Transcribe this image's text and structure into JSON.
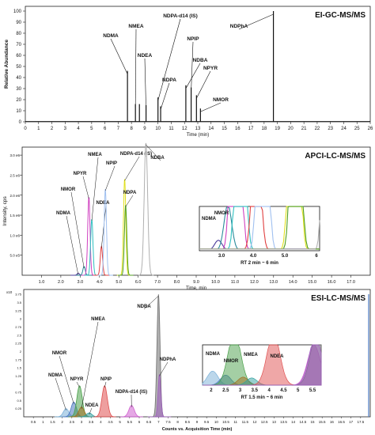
{
  "chart_data": [
    {
      "type": "line",
      "title": "EI-GC-MS/MS",
      "xlabel": "Time (min)",
      "ylabel": "Relative Abundance",
      "xlim": [
        0,
        26
      ],
      "ylim": [
        0,
        100
      ],
      "xticks": [
        0,
        1,
        2,
        3,
        4,
        5,
        6,
        7,
        8,
        9,
        10,
        11,
        12,
        13,
        14,
        15,
        16,
        17,
        18,
        19,
        20,
        21,
        22,
        23,
        24,
        25,
        26
      ],
      "yticks": [
        0,
        10,
        20,
        30,
        40,
        50,
        60,
        70,
        80,
        90,
        100
      ],
      "grid": false,
      "color": "#111111",
      "peaks": [
        {
          "name": "NDMA",
          "x": 7.7,
          "y": 46,
          "label": "NDMA"
        },
        {
          "name": "NMEA",
          "x": 8.3,
          "y": 16,
          "label": "NMEA"
        },
        {
          "name": "NMEA-2",
          "x": 8.6,
          "y": 16,
          "label": ""
        },
        {
          "name": "NDEA",
          "x": 9.1,
          "y": 15,
          "label": "NDEA"
        },
        {
          "name": "NDPA-d14 (IS)",
          "x": 10.0,
          "y": 22,
          "label": "NDPA-d14 (IS)"
        },
        {
          "name": "NDPA",
          "x": 10.2,
          "y": 14,
          "label": "NDPA"
        },
        {
          "name": "NDBA",
          "x": 12.1,
          "y": 33,
          "label": "NDBA"
        },
        {
          "name": "NPIP",
          "x": 12.5,
          "y": 31,
          "label": "NPIP"
        },
        {
          "name": "NPYR",
          "x": 12.9,
          "y": 24,
          "label": "NPYR"
        },
        {
          "name": "NMOR",
          "x": 13.2,
          "y": 12,
          "label": "NMOR"
        },
        {
          "name": "NDPhA",
          "x": 18.7,
          "y": 100,
          "label": "NDPhA"
        }
      ]
    },
    {
      "type": "line",
      "title": "APCI-LC-MS/MS",
      "xlabel": "Time, min",
      "ylabel": "Intensity, cps",
      "xlim": [
        0,
        18
      ],
      "ylim": [
        0,
        3.2
      ],
      "xticks": [
        1.0,
        2.0,
        3.0,
        4.0,
        5.0,
        6.0,
        7.0,
        8.0,
        9.0,
        10.0,
        11.0,
        12.0,
        13.0,
        14.0,
        15.0,
        16.0,
        17.0
      ],
      "yticks": [
        "5.0 e5",
        "1.0 e6",
        "1.5 e6",
        "2.0 e6",
        "2.5 e6",
        "3.0 e6"
      ],
      "grid": false,
      "series": [
        {
          "name": "NDMA",
          "x": 2.9,
          "y": 0.05,
          "color": "#4a3a9a",
          "label": "NDMA"
        },
        {
          "name": "NMOR",
          "x": 3.2,
          "y": 0.22,
          "color": "#2a8a9a",
          "label": "NMOR"
        },
        {
          "name": "NPYR",
          "x": 3.45,
          "y": 1.95,
          "color": "#d040c0",
          "label": "NPYR"
        },
        {
          "name": "NMEA",
          "x": 3.6,
          "y": 1.4,
          "color": "#30c0c0",
          "label": "NMEA"
        },
        {
          "name": "NDEA",
          "x": 4.1,
          "y": 0.72,
          "color": "#e04040",
          "label": "NDEA"
        },
        {
          "name": "NPIP",
          "x": 4.3,
          "y": 2.15,
          "color": "#a0c0f0",
          "label": "NPIP"
        },
        {
          "name": "NDPA-d14 (IS)",
          "x": 5.3,
          "y": 2.4,
          "color": "#e0e020",
          "label": "NDPA-d14 (IS)"
        },
        {
          "name": "NDPA",
          "x": 5.35,
          "y": 1.75,
          "color": "#50a020",
          "label": "NDPA"
        },
        {
          "name": "NDBA",
          "x": 6.4,
          "y": 3.3,
          "color": "#b0b0b0",
          "label": "NDBA"
        }
      ],
      "inset": {
        "xlabel": "RT 2 min ~ 6 min",
        "xticks": [
          "3.0",
          "4.0",
          "5.0",
          "6"
        ],
        "labels": [
          "NDMA",
          "NMOR"
        ]
      }
    },
    {
      "type": "line",
      "title": "ESI-LC-MS/MS",
      "xlabel": "Counts vs. Acquisition Time (min)",
      "ylabel": "",
      "yexp": "x10",
      "xlim": [
        0,
        18
      ],
      "ylim": [
        0,
        3.9
      ],
      "xticks": [
        "0.5",
        "1",
        "1.5",
        "2",
        "2.5",
        "3",
        "3.5",
        "4",
        "4.5",
        "5",
        "5.5",
        "6",
        "6.5",
        "7",
        "7.5",
        "8",
        "8.5",
        "9",
        "9.5",
        "10",
        "10.5",
        "11",
        "11.5",
        "12",
        "12.5",
        "13",
        "13.5",
        "14",
        "14.5",
        "15",
        "15.5",
        "16",
        "16.5",
        "17",
        "17.5"
      ],
      "yticks": [
        "0.25",
        "0.5",
        "0.75",
        "1",
        "1.25",
        "1.5",
        "1.75",
        "2",
        "2.25",
        "2.5",
        "2.75",
        "3",
        "3.25",
        "3.5",
        "3.75"
      ],
      "grid": false,
      "series": [
        {
          "name": "NDMA",
          "x": 2.2,
          "y": 0.25,
          "color": "#7ab0d8",
          "label": "NDMA"
        },
        {
          "name": "NMOR",
          "x": 2.6,
          "y": 0.45,
          "color": "#4a78c0",
          "label": "NMOR"
        },
        {
          "name": "NPYR",
          "x": 2.9,
          "y": 0.95,
          "color": "#4aa04a",
          "label": "NPYR"
        },
        {
          "name": "NMEA",
          "x": 3.0,
          "y": 0.3,
          "color": "#a07020",
          "label": "NMEA"
        },
        {
          "name": "NDEA",
          "x": 3.4,
          "y": 0.12,
          "color": "#30a0a0",
          "label": "NDEA"
        },
        {
          "name": "NPIP",
          "x": 4.2,
          "y": 0.95,
          "color": "#e05050",
          "label": "NPIP"
        },
        {
          "name": "NDPA-d14 (IS)",
          "x": 5.6,
          "y": 0.35,
          "color": "#d060d0",
          "label": "NDPA-d14 (IS)"
        },
        {
          "name": "NDBA",
          "x": 7.0,
          "y": 3.75,
          "color": "#707070",
          "label": "NDBA"
        },
        {
          "name": "NDPhA",
          "x": 7.05,
          "y": 1.3,
          "color": "#a060c0",
          "label": "NDPhA"
        }
      ],
      "inset": {
        "xlabel": "RT 1.5 min ~ 6 min",
        "xticks": [
          "2",
          "2.5",
          "3",
          "3.5",
          "4",
          "4.5",
          "5",
          "5.5"
        ],
        "labels": [
          "NDMA",
          "NMOR",
          "NMEA",
          "NDEA"
        ]
      }
    }
  ]
}
